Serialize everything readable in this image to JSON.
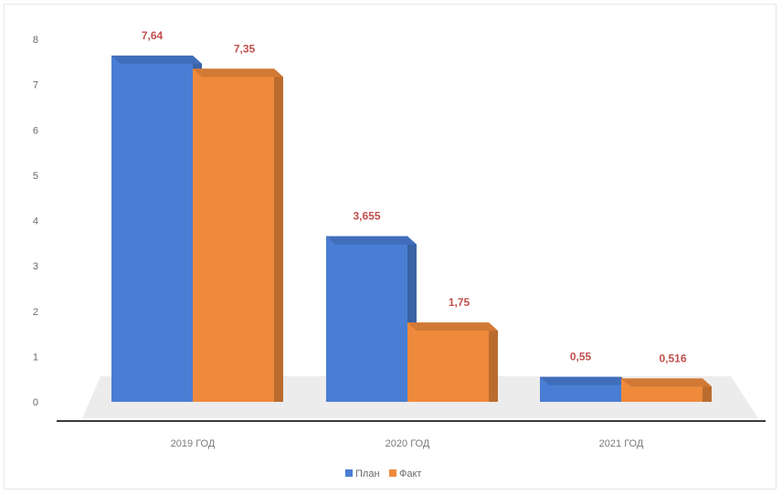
{
  "chart_data": {
    "type": "bar",
    "categories": [
      "2019 ГОД",
      "2020 ГОД",
      "2021 ГОД"
    ],
    "series": [
      {
        "name": "План",
        "values": [
          7.64,
          3.655,
          0.55
        ],
        "labels": [
          "7,64",
          "3,655",
          "0,55"
        ],
        "color": "#4a7dd4"
      },
      {
        "name": "Факт",
        "values": [
          7.35,
          1.75,
          0.516
        ],
        "labels": [
          "7,35",
          "1,75",
          "0,516"
        ],
        "color": "#ef8a3c"
      }
    ],
    "yticks": [
      0,
      1,
      2,
      3,
      4,
      5,
      6,
      7,
      8
    ],
    "ylim": [
      0,
      8
    ],
    "grid": false,
    "legend_position": "bottom",
    "data_label_color": "#c0504d",
    "title": "",
    "xlabel": "",
    "ylabel": ""
  }
}
